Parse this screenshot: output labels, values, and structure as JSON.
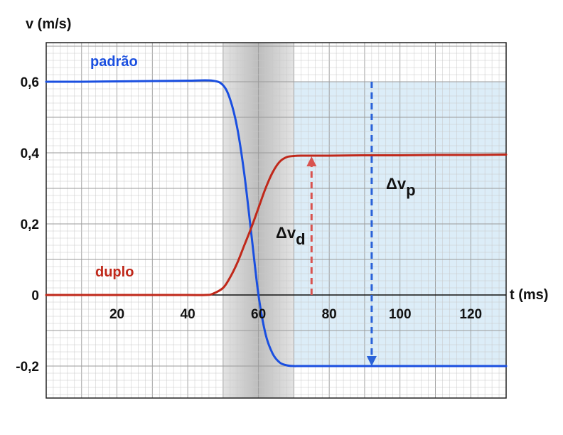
{
  "chart_data": {
    "type": "line",
    "ylabel": "v (m/s)",
    "xlabel": "t (ms)",
    "xlim": [
      0,
      130
    ],
    "ylim": [
      -0.29,
      0.71
    ],
    "x_ticks": [
      20,
      40,
      60,
      80,
      100,
      120
    ],
    "x_tick_labels": [
      "20",
      "40",
      "60",
      "80",
      "100",
      "120"
    ],
    "y_ticks": [
      0.6,
      0.4,
      0.2,
      0,
      -0.2
    ],
    "y_tick_labels": [
      "0,6",
      "0,4",
      "0,2",
      "0",
      "-0,2"
    ],
    "grid": true,
    "series": [
      {
        "name": "padrão",
        "color": "#1a4fe0",
        "x": [
          0,
          10,
          20,
          30,
          40,
          47,
          50,
          52,
          54,
          56,
          58,
          60,
          62,
          64,
          66,
          68,
          70,
          72,
          80,
          90,
          100,
          110,
          120,
          130
        ],
        "values": [
          0.6,
          0.6,
          0.601,
          0.602,
          0.603,
          0.603,
          0.59,
          0.55,
          0.47,
          0.34,
          0.17,
          0.0,
          -0.11,
          -0.165,
          -0.19,
          -0.198,
          -0.2,
          -0.2,
          -0.2,
          -0.2,
          -0.2,
          -0.2,
          -0.2,
          -0.2
        ]
      },
      {
        "name": "duplo",
        "color": "#c0281a",
        "x": [
          0,
          10,
          20,
          30,
          40,
          45,
          47,
          50,
          52,
          54,
          56,
          58,
          60,
          62,
          64,
          66,
          68,
          70,
          72,
          80,
          90,
          100,
          110,
          120,
          130
        ],
        "values": [
          0,
          0,
          0,
          0,
          0,
          0,
          0.003,
          0.02,
          0.05,
          0.09,
          0.14,
          0.19,
          0.245,
          0.3,
          0.345,
          0.375,
          0.388,
          0.391,
          0.392,
          0.392,
          0.393,
          0.393,
          0.394,
          0.394,
          0.395
        ]
      }
    ],
    "shaded_band": {
      "x": [
        50,
        70
      ],
      "color": "#d0d0d0"
    },
    "shaded_region": {
      "x": [
        70,
        130
      ],
      "y": [
        -0.2,
        0.6
      ],
      "color": "#dcedf8"
    },
    "annotations": [
      {
        "label": "Δv",
        "sub": "d",
        "arrow_x": 75,
        "from": 0,
        "to": 0.39,
        "color": "#d9534f"
      },
      {
        "label": "Δv",
        "sub": "p",
        "arrow_x": 92,
        "from": 0.6,
        "to": -0.2,
        "color": "#2a62d8"
      }
    ]
  }
}
